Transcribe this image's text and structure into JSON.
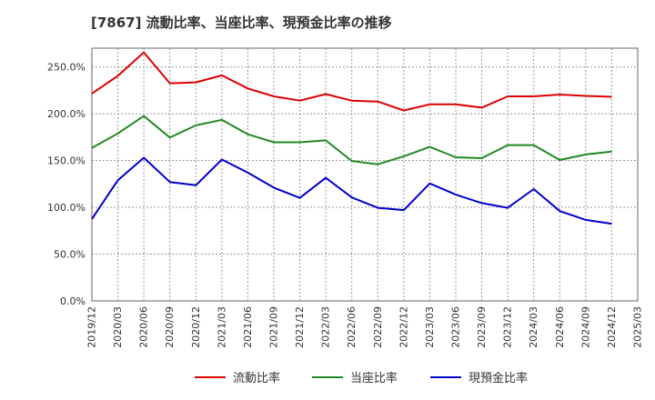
{
  "chart_data": {
    "type": "line",
    "title": "[7867]  流動比率、当座比率、現預金比率の推移",
    "xlabel": "",
    "ylabel": "",
    "ylim": [
      0,
      270
    ],
    "yticks": [
      0,
      50,
      100,
      150,
      200,
      250
    ],
    "ytick_labels": [
      "0.0%",
      "50.0%",
      "100.0%",
      "150.0%",
      "200.0%",
      "250.0%"
    ],
    "xtick_labels": [
      "2019/12",
      "2020/03",
      "2020/06",
      "2020/09",
      "2020/12",
      "2021/03",
      "2021/06",
      "2021/09",
      "2021/12",
      "2022/03",
      "2022/06",
      "2022/09",
      "2022/12",
      "2023/03",
      "2023/06",
      "2023/09",
      "2023/12",
      "2024/03",
      "2024/06",
      "2024/09",
      "2024/12",
      "2025/03"
    ],
    "x": [
      "2019/12",
      "2020/03",
      "2020/06",
      "2020/09",
      "2020/12",
      "2021/03",
      "2021/06",
      "2021/09",
      "2021/12",
      "2022/03",
      "2022/06",
      "2022/09",
      "2022/12",
      "2023/03",
      "2023/06",
      "2023/09",
      "2023/12",
      "2024/03",
      "2024/06",
      "2024/09",
      "2024/12"
    ],
    "grid": true,
    "legend_position": "bottom",
    "series": [
      {
        "name": "流動比率",
        "color": "#dd0000",
        "values": [
          221.5,
          240.5,
          265.5,
          232.5,
          233.5,
          241.0,
          227.0,
          218.5,
          214.0,
          221.0,
          214.0,
          213.0,
          203.5,
          210.0,
          210.0,
          206.5,
          218.5,
          218.5,
          220.5,
          219.0,
          218.0
        ]
      },
      {
        "name": "当座比率",
        "color": "#228822",
        "values": [
          163.5,
          179.0,
          197.5,
          174.5,
          187.5,
          193.5,
          178.0,
          169.5,
          169.5,
          171.5,
          149.5,
          146.0,
          154.5,
          164.5,
          153.5,
          152.5,
          166.5,
          166.5,
          150.5,
          156.5,
          159.5
        ]
      },
      {
        "name": "現預金比率",
        "color": "#0000cc",
        "values": [
          87.5,
          129.0,
          153.0,
          127.0,
          123.5,
          151.0,
          137.0,
          121.0,
          110.0,
          131.5,
          110.5,
          99.5,
          97.0,
          125.5,
          113.5,
          104.5,
          99.5,
          119.5,
          96.0,
          86.5,
          82.5
        ]
      }
    ]
  }
}
